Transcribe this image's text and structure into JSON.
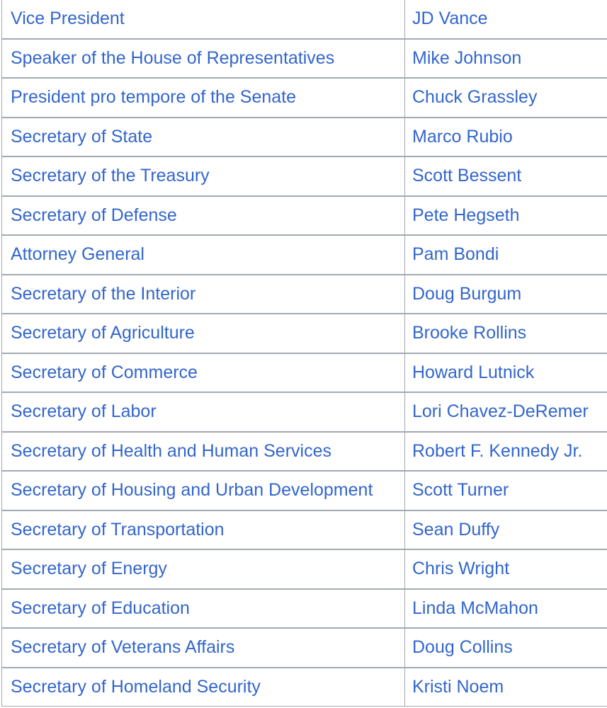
{
  "table": {
    "rows": [
      [
        "Vice President",
        "JD Vance"
      ],
      [
        "Speaker of the House of Representatives",
        "Mike Johnson"
      ],
      [
        "President pro tempore of the Senate",
        "Chuck Grassley"
      ],
      [
        "Secretary of State",
        "Marco Rubio"
      ],
      [
        "Secretary of the Treasury",
        "Scott Bessent"
      ],
      [
        "Secretary of Defense",
        "Pete Hegseth"
      ],
      [
        "Attorney General",
        "Pam Bondi"
      ],
      [
        "Secretary of the Interior",
        "Doug Burgum"
      ],
      [
        "Secretary of Agriculture",
        "Brooke Rollins"
      ],
      [
        "Secretary of Commerce",
        "Howard Lutnick"
      ],
      [
        "Secretary of Labor",
        "Lori Chavez-DeRemer"
      ],
      [
        "Secretary of Health and Human Services",
        "Robert F. Kennedy Jr."
      ],
      [
        "Secretary of Housing and Urban Development",
        "Scott Turner"
      ],
      [
        "Secretary of Transportation",
        "Sean Duffy"
      ],
      [
        "Secretary of Energy",
        "Chris Wright"
      ],
      [
        "Secretary of Education",
        "Linda McMahon"
      ],
      [
        "Secretary of Veterans Affairs",
        "Doug Collins"
      ],
      [
        "Secretary of Homeland Security",
        "Kristi Noem"
      ]
    ]
  }
}
